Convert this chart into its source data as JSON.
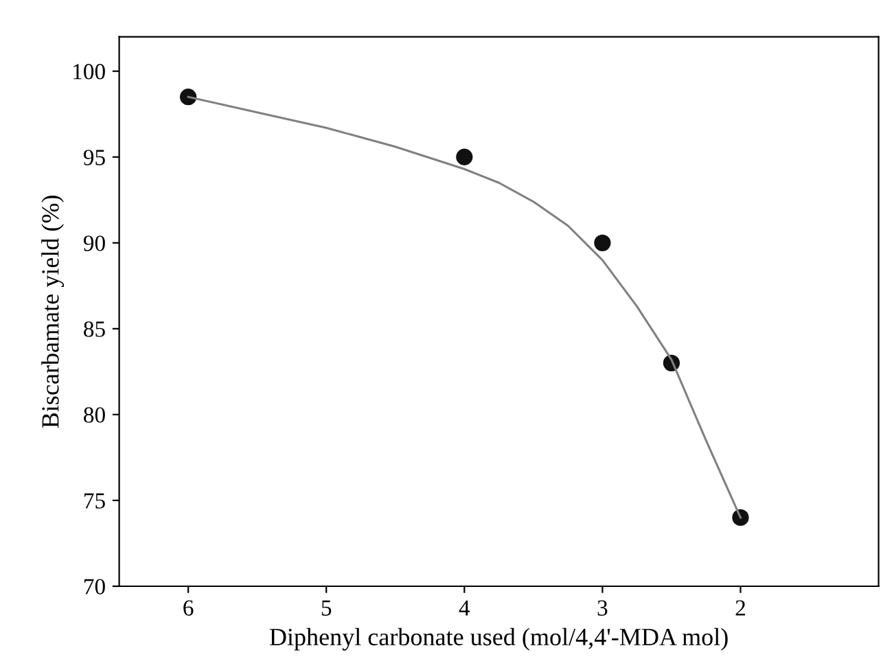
{
  "chart_data": {
    "type": "scatter",
    "xlabel": "Diphenyl carbonate used (mol/4,4'-MDA mol)",
    "ylabel": "Biscarbamate yield (%)",
    "x": [
      6,
      4,
      3,
      2.5,
      2
    ],
    "series": [
      {
        "color": "#111111",
        "values": [
          98.5,
          95,
          90,
          83,
          74
        ],
        "marker": "circle"
      },
      {
        "type": "line",
        "color": "#808080",
        "x": [
          6,
          5.5,
          5,
          4.5,
          4,
          3.75,
          3.5,
          3.25,
          3,
          2.75,
          2.5,
          2.25,
          2
        ],
        "values": [
          98.5,
          97.6,
          96.7,
          95.6,
          94.3,
          93.5,
          92.4,
          91,
          89,
          86.3,
          83.2,
          78.5,
          74
        ],
        "marker": "none",
        "line_style": "solid"
      }
    ],
    "xlim": [
      6.5,
      1.0
    ],
    "xticks": [
      6,
      5,
      4,
      3,
      2
    ],
    "ylim": [
      70,
      102
    ],
    "yticks": [
      70,
      75,
      80,
      85,
      90,
      95,
      100
    ],
    "grid": false,
    "legend": false
  }
}
